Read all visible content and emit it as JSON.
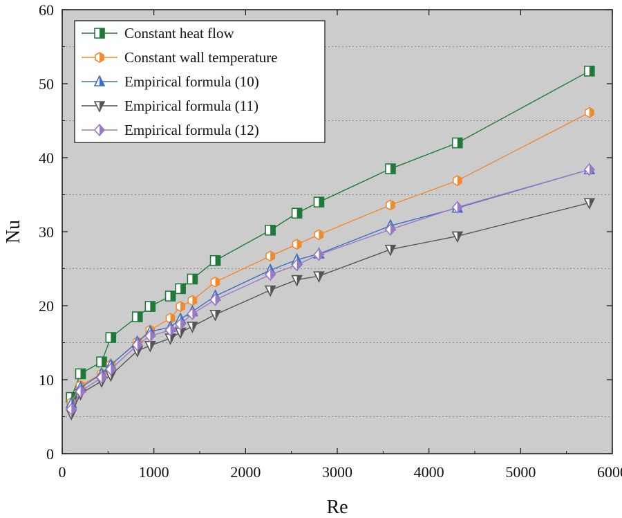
{
  "chart_data": {
    "type": "line",
    "title": "",
    "xlabel": "Re",
    "ylabel": "Nu",
    "xlim": [
      0,
      6000
    ],
    "ylim": [
      0,
      60
    ],
    "xticks": [
      0,
      1000,
      2000,
      3000,
      4000,
      5000,
      6000
    ],
    "yticks": [
      0,
      10,
      20,
      30,
      40,
      50,
      60
    ],
    "grid": "horizontal dotted at minor ticks (5, 15, 25, 35, 45, 55)",
    "minor_gridlines": [
      5,
      15,
      25,
      35,
      45,
      55
    ],
    "background_color": "#cccccc",
    "legend_position": "top-left",
    "x": [
      100,
      200,
      430,
      530,
      820,
      960,
      1180,
      1290,
      1420,
      1670,
      2270,
      2560,
      2800,
      3580,
      4310,
      5750
    ],
    "series": [
      {
        "name": "Constant heat flow",
        "color": "#1f7a3a",
        "marker": "half-square",
        "values": [
          7.6,
          10.8,
          12.4,
          15.7,
          18.5,
          19.9,
          21.3,
          22.3,
          23.6,
          26.1,
          30.2,
          32.5,
          34.0,
          38.5,
          42.0,
          51.7
        ]
      },
      {
        "name": "Constant wall temperature",
        "color": "#ef8a2e",
        "marker": "half-hexagon",
        "values": [
          6.9,
          9.2,
          10.8,
          12.0,
          15.1,
          16.7,
          18.3,
          19.9,
          20.7,
          23.2,
          26.7,
          28.3,
          29.6,
          33.6,
          36.9,
          46.1
        ]
      },
      {
        "name": "Empirical formula (10)",
        "color": "#3b6fc4",
        "marker": "triangle-up",
        "values": [
          6.8,
          8.9,
          10.8,
          12.0,
          15.1,
          16.5,
          17.1,
          18.2,
          19.2,
          21.3,
          24.8,
          26.2,
          27.0,
          30.8,
          33.2,
          38.4
        ]
      },
      {
        "name": "Empirical formula (11)",
        "color": "#555555",
        "marker": "triangle-down",
        "values": [
          5.4,
          8.1,
          9.8,
          10.6,
          13.9,
          14.6,
          15.6,
          16.4,
          17.2,
          18.8,
          22.1,
          23.5,
          24.0,
          27.6,
          29.4,
          33.9
        ]
      },
      {
        "name": "Empirical formula (12)",
        "color": "#9b78c4",
        "marker": "diamond",
        "values": [
          6.0,
          8.4,
          10.3,
          11.4,
          14.7,
          15.9,
          16.7,
          17.5,
          18.9,
          20.8,
          24.2,
          25.5,
          26.9,
          30.3,
          33.3,
          38.4
        ]
      }
    ]
  }
}
